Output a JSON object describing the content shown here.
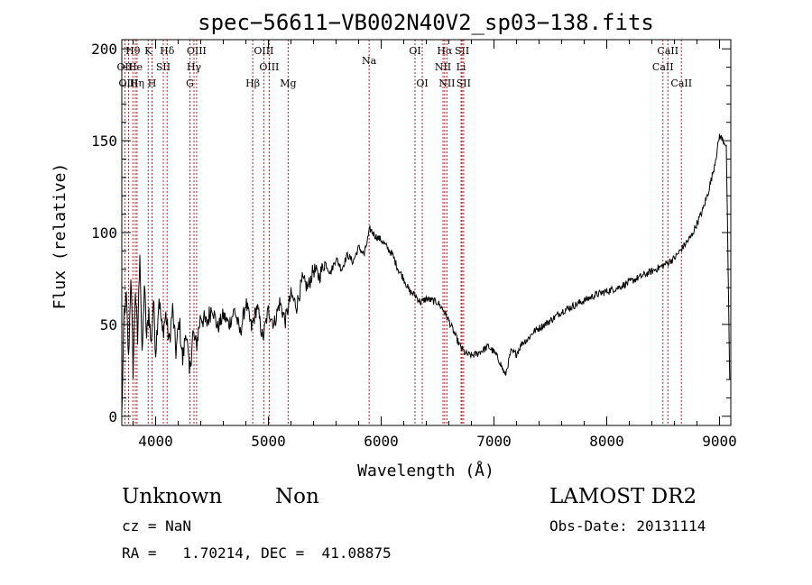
{
  "chart_data": {
    "type": "line",
    "title": "spec−56611−VB002N40V2_sp03−138.fits",
    "xlabel": "Wavelength (Å)",
    "ylabel": "Flux (relative)",
    "xlim": [
      3700,
      9100
    ],
    "ylim": [
      -5,
      205
    ],
    "xticks": [
      4000,
      5000,
      6000,
      7000,
      8000,
      9000
    ],
    "yticks": [
      0,
      50,
      100,
      150,
      200
    ],
    "grid": false,
    "line_color": "#000000",
    "marker_color": "#b22222",
    "series": [
      {
        "x": [
          3700,
          3720,
          3740,
          3760,
          3780,
          3800,
          3820,
          3840,
          3860,
          3880,
          3900,
          3920,
          3940,
          3960,
          3980,
          4000,
          4030,
          4060,
          4090,
          4120,
          4150,
          4180,
          4210,
          4240,
          4270,
          4300,
          4330,
          4360,
          4400,
          4450,
          4500,
          4550,
          4600,
          4650,
          4700,
          4750,
          4800,
          4850,
          4900,
          4950,
          5000,
          5050,
          5100,
          5150,
          5200,
          5250,
          5300,
          5350,
          5400,
          5450,
          5500,
          5550,
          5600,
          5650,
          5700,
          5750,
          5800,
          5850,
          5900,
          5950,
          6000,
          6050,
          6100,
          6150,
          6200,
          6250,
          6300,
          6350,
          6400,
          6450,
          6500,
          6550,
          6600,
          6650,
          6700,
          6750,
          6800,
          6850,
          6900,
          6950,
          7000,
          7050,
          7100,
          7150,
          7200,
          7250,
          7300,
          7350,
          7400,
          7450,
          7500,
          7600,
          7700,
          7800,
          7900,
          8000,
          8100,
          8200,
          8300,
          8400,
          8500,
          8550,
          8600,
          8650,
          8700,
          8750,
          8800,
          8850,
          8900,
          8950,
          8980,
          9000,
          9030,
          9060,
          9090
        ],
        "y": [
          0,
          55,
          65,
          30,
          78,
          25,
          70,
          40,
          92,
          30,
          72,
          42,
          58,
          38,
          64,
          35,
          65,
          45,
          55,
          40,
          58,
          35,
          52,
          30,
          48,
          22,
          45,
          38,
          55,
          50,
          60,
          48,
          55,
          50,
          58,
          45,
          62,
          48,
          60,
          42,
          58,
          50,
          62,
          52,
          66,
          60,
          74,
          70,
          80,
          76,
          84,
          78,
          86,
          80,
          88,
          84,
          92,
          88,
          102,
          98,
          96,
          92,
          88,
          80,
          75,
          68,
          66,
          62,
          64,
          63,
          62,
          58,
          52,
          45,
          38,
          34,
          33,
          34,
          36,
          38,
          35,
          30,
          22,
          35,
          34,
          40,
          42,
          46,
          48,
          50,
          52,
          57,
          60,
          63,
          66,
          68,
          70,
          73,
          76,
          79,
          82,
          84,
          86,
          90,
          94,
          98,
          105,
          112,
          122,
          135,
          145,
          153,
          150,
          148,
          20
        ]
      }
    ],
    "lines": [
      {
        "label": "Hθ",
        "x": 3798,
        "row": 1
      },
      {
        "label": "K",
        "x": 3934,
        "row": 1
      },
      {
        "label": "Hδ",
        "x": 4102,
        "row": 1
      },
      {
        "label": "OIII",
        "x": 4363,
        "row": 1
      },
      {
        "label": "OIII",
        "x": 4959,
        "row": 1
      },
      {
        "label": "OI",
        "x": 6300,
        "row": 1
      },
      {
        "label": "Hα",
        "x": 6563,
        "row": 1
      },
      {
        "label": "SII",
        "x": 6717,
        "row": 1
      },
      {
        "label": "CaII",
        "x": 8542,
        "row": 1
      },
      {
        "label": "OII",
        "x": 3727,
        "row": 2
      },
      {
        "label": "He",
        "x": 3820,
        "row": 2
      },
      {
        "label": "SII",
        "x": 4068,
        "row": 2
      },
      {
        "label": "Hγ",
        "x": 4340,
        "row": 2
      },
      {
        "label": "OIII",
        "x": 5007,
        "row": 2
      },
      {
        "label": "NII",
        "x": 6548,
        "row": 2
      },
      {
        "label": "Li",
        "x": 6708,
        "row": 2
      },
      {
        "label": "CaII",
        "x": 8498,
        "row": 2
      },
      {
        "label": "OIII",
        "x": 3760,
        "row": 3
      },
      {
        "label": "Hη",
        "x": 3835,
        "row": 3
      },
      {
        "label": "H",
        "x": 3968,
        "row": 3
      },
      {
        "label": "G",
        "x": 4304,
        "row": 3
      },
      {
        "label": "Hβ",
        "x": 4861,
        "row": 3
      },
      {
        "label": "Mg",
        "x": 5175,
        "row": 3
      },
      {
        "label": "Na",
        "x": 5893,
        "row": 1.6
      },
      {
        "label": "OI",
        "x": 6364,
        "row": 3
      },
      {
        "label": "NII",
        "x": 6583,
        "row": 3
      },
      {
        "label": "SII",
        "x": 6731,
        "row": 3
      },
      {
        "label": "CaII",
        "x": 8662,
        "row": 3
      }
    ]
  },
  "info": {
    "object_class": "Unknown",
    "object_subclass": "Non",
    "survey": "LAMOST DR2",
    "cz": "cz = NaN",
    "obs_date": "Obs-Date: 20131114",
    "coords": "RA =   1.70214, DEC =  41.08875"
  }
}
